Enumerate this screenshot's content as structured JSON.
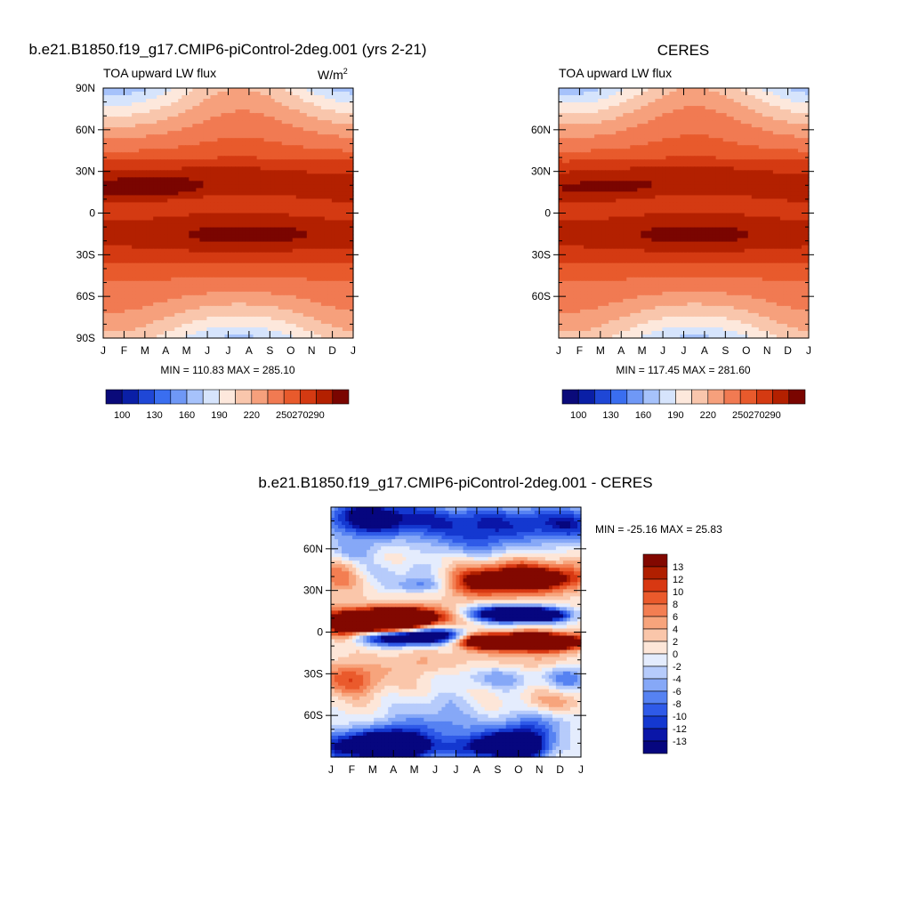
{
  "colors": {
    "abs_scale": [
      "#0a0a7a",
      "#0a1fa6",
      "#1f47d6",
      "#3a6ef0",
      "#6f98f6",
      "#a6c2fb",
      "#d6e4fc",
      "#fde8dc",
      "#f9c6ac",
      "#f6a07c",
      "#f17a52",
      "#e85a2c",
      "#d43a12",
      "#b32000",
      "#7a0500"
    ],
    "diff_scale": [
      "#06067f",
      "#0a16a8",
      "#1438d0",
      "#2f5ae8",
      "#5682f2",
      "#86a8f7",
      "#b6cbfb",
      "#e4ecfd",
      "#fde6d8",
      "#fac6aa",
      "#f7a47c",
      "#f37e52",
      "#ea5a2c",
      "#d83812",
      "#b01f00",
      "#820800"
    ]
  },
  "panels": {
    "model": {
      "title": "b.e21.B1850.f19_g17.CMIP6-piControl-2deg.001 (yrs 2-21)",
      "subtitle": "TOA upward LW flux",
      "units": "W/m",
      "units_sup": "2",
      "stats": "MIN = 110.83 MAX = 285.10"
    },
    "obs": {
      "title": "CERES",
      "subtitle": "TOA upward LW flux",
      "stats": "MIN = 117.45 MAX = 281.60"
    },
    "diff": {
      "title": "b.e21.B1850.f19_g17.CMIP6-piControl-2deg.001 - CERES",
      "stats": "MIN = -25.16 MAX =  25.83"
    }
  },
  "chart_data": [
    {
      "type": "heatmap",
      "title": "b.e21.B1850.f19_g17.CMIP6-piControl-2deg.001 (yrs 2-21)",
      "subtitle": "TOA upward LW flux",
      "units": "W/m^2",
      "x_ticks": [
        "J",
        "F",
        "M",
        "A",
        "M",
        "J",
        "J",
        "A",
        "S",
        "O",
        "N",
        "D",
        "J"
      ],
      "y_ticks": [
        "90N",
        "60N",
        "30N",
        "0",
        "30S",
        "60S",
        "90S"
      ],
      "xlim": [
        0,
        12
      ],
      "ylim": [
        -90,
        90
      ],
      "colorbar_labels": [
        "100",
        "130",
        "160",
        "190",
        "220",
        "250",
        "270",
        "290"
      ],
      "colorbar_levels": [
        100,
        115,
        130,
        145,
        160,
        175,
        190,
        205,
        220,
        235,
        250,
        260,
        270,
        280
      ],
      "min": 110.83,
      "max": 285.1
    },
    {
      "type": "heatmap",
      "title": "CERES",
      "subtitle": "TOA upward LW flux",
      "x_ticks": [
        "J",
        "F",
        "M",
        "A",
        "M",
        "J",
        "J",
        "A",
        "S",
        "O",
        "N",
        "D",
        "J"
      ],
      "y_ticks": [
        "60N",
        "30N",
        "0",
        "30S",
        "60S"
      ],
      "xlim": [
        0,
        12
      ],
      "ylim": [
        -90,
        90
      ],
      "colorbar_labels": [
        "100",
        "130",
        "160",
        "190",
        "220",
        "250",
        "270",
        "290"
      ],
      "min": 117.45,
      "max": 281.6
    },
    {
      "type": "heatmap",
      "title": "b.e21.B1850.f19_g17.CMIP6-piControl-2deg.001 - CERES",
      "x_ticks": [
        "J",
        "F",
        "M",
        "A",
        "M",
        "J",
        "J",
        "A",
        "S",
        "O",
        "N",
        "D",
        "J"
      ],
      "y_ticks": [
        "60N",
        "30N",
        "0",
        "30S",
        "60S"
      ],
      "xlim": [
        0,
        12
      ],
      "ylim": [
        -90,
        90
      ],
      "colorbar_labels": [
        "13",
        "12",
        "10",
        "8",
        "6",
        "4",
        "2",
        "0",
        "-2",
        "-4",
        "-6",
        "-8",
        "-10",
        "-12",
        "-13"
      ],
      "colorbar_levels": [
        -13,
        -12,
        -10,
        -8,
        -6,
        -4,
        -2,
        0,
        2,
        4,
        6,
        8,
        10,
        12,
        13
      ],
      "min": -25.16,
      "max": 25.83
    }
  ]
}
